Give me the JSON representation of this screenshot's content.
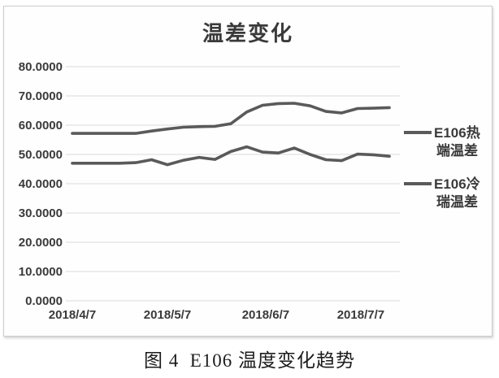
{
  "page": {
    "caption": "图 4  E106 温度变化趋势"
  },
  "chart_data": {
    "type": "line",
    "title": "温差变化",
    "x_unit": "days since 2018/4/7 (approx. 5-day sampling read from plot)",
    "x": [
      0,
      5,
      10,
      15,
      20,
      25,
      30,
      35,
      40,
      45,
      50,
      55,
      60,
      65,
      70,
      75,
      80,
      85,
      90,
      95,
      100
    ],
    "series": [
      {
        "name": "E106热端温差",
        "legend_lines": [
          "E106热",
          "端温差"
        ],
        "values": [
          57.2,
          57.2,
          57.2,
          57.2,
          57.2,
          58.0,
          58.7,
          59.3,
          59.5,
          59.6,
          60.5,
          64.5,
          66.8,
          67.4,
          67.5,
          66.6,
          64.7,
          64.2,
          65.7,
          65.8,
          66.0
        ]
      },
      {
        "name": "E106冷瑞温差",
        "legend_lines": [
          "E106冷",
          "瑞温差"
        ],
        "values": [
          47.0,
          47.0,
          47.0,
          47.0,
          47.2,
          48.2,
          46.5,
          48.0,
          49.0,
          48.3,
          51.0,
          52.6,
          50.8,
          50.5,
          52.2,
          50.0,
          48.2,
          47.9,
          50.1,
          49.9,
          49.4
        ]
      }
    ],
    "x_ticks": [
      {
        "day": 0,
        "label": "2018/4/7"
      },
      {
        "day": 30,
        "label": "2018/5/7"
      },
      {
        "day": 61,
        "label": "2018/6/7"
      },
      {
        "day": 91,
        "label": "2018/7/7"
      }
    ],
    "y_ticks": [
      {
        "value": 0,
        "label": "0.0000"
      },
      {
        "value": 10,
        "label": "10.0000"
      },
      {
        "value": 20,
        "label": "20.0000"
      },
      {
        "value": 30,
        "label": "30.0000"
      },
      {
        "value": 40,
        "label": "40.0000"
      },
      {
        "value": 50,
        "label": "50.0000"
      },
      {
        "value": 60,
        "label": "60.0000"
      },
      {
        "value": 70,
        "label": "70.0000"
      },
      {
        "value": 80,
        "label": "80.0000"
      }
    ],
    "ylim": [
      0,
      80
    ],
    "grid": "horizontal",
    "legend_position": "right",
    "colors": {
      "series": "#5a5a5a",
      "gridline": "#dbdbdb",
      "axis_text": "#3a3a3a",
      "title_text": "#3a3a3a",
      "frame_border": "#cccccc",
      "background": "#ffffff"
    }
  }
}
